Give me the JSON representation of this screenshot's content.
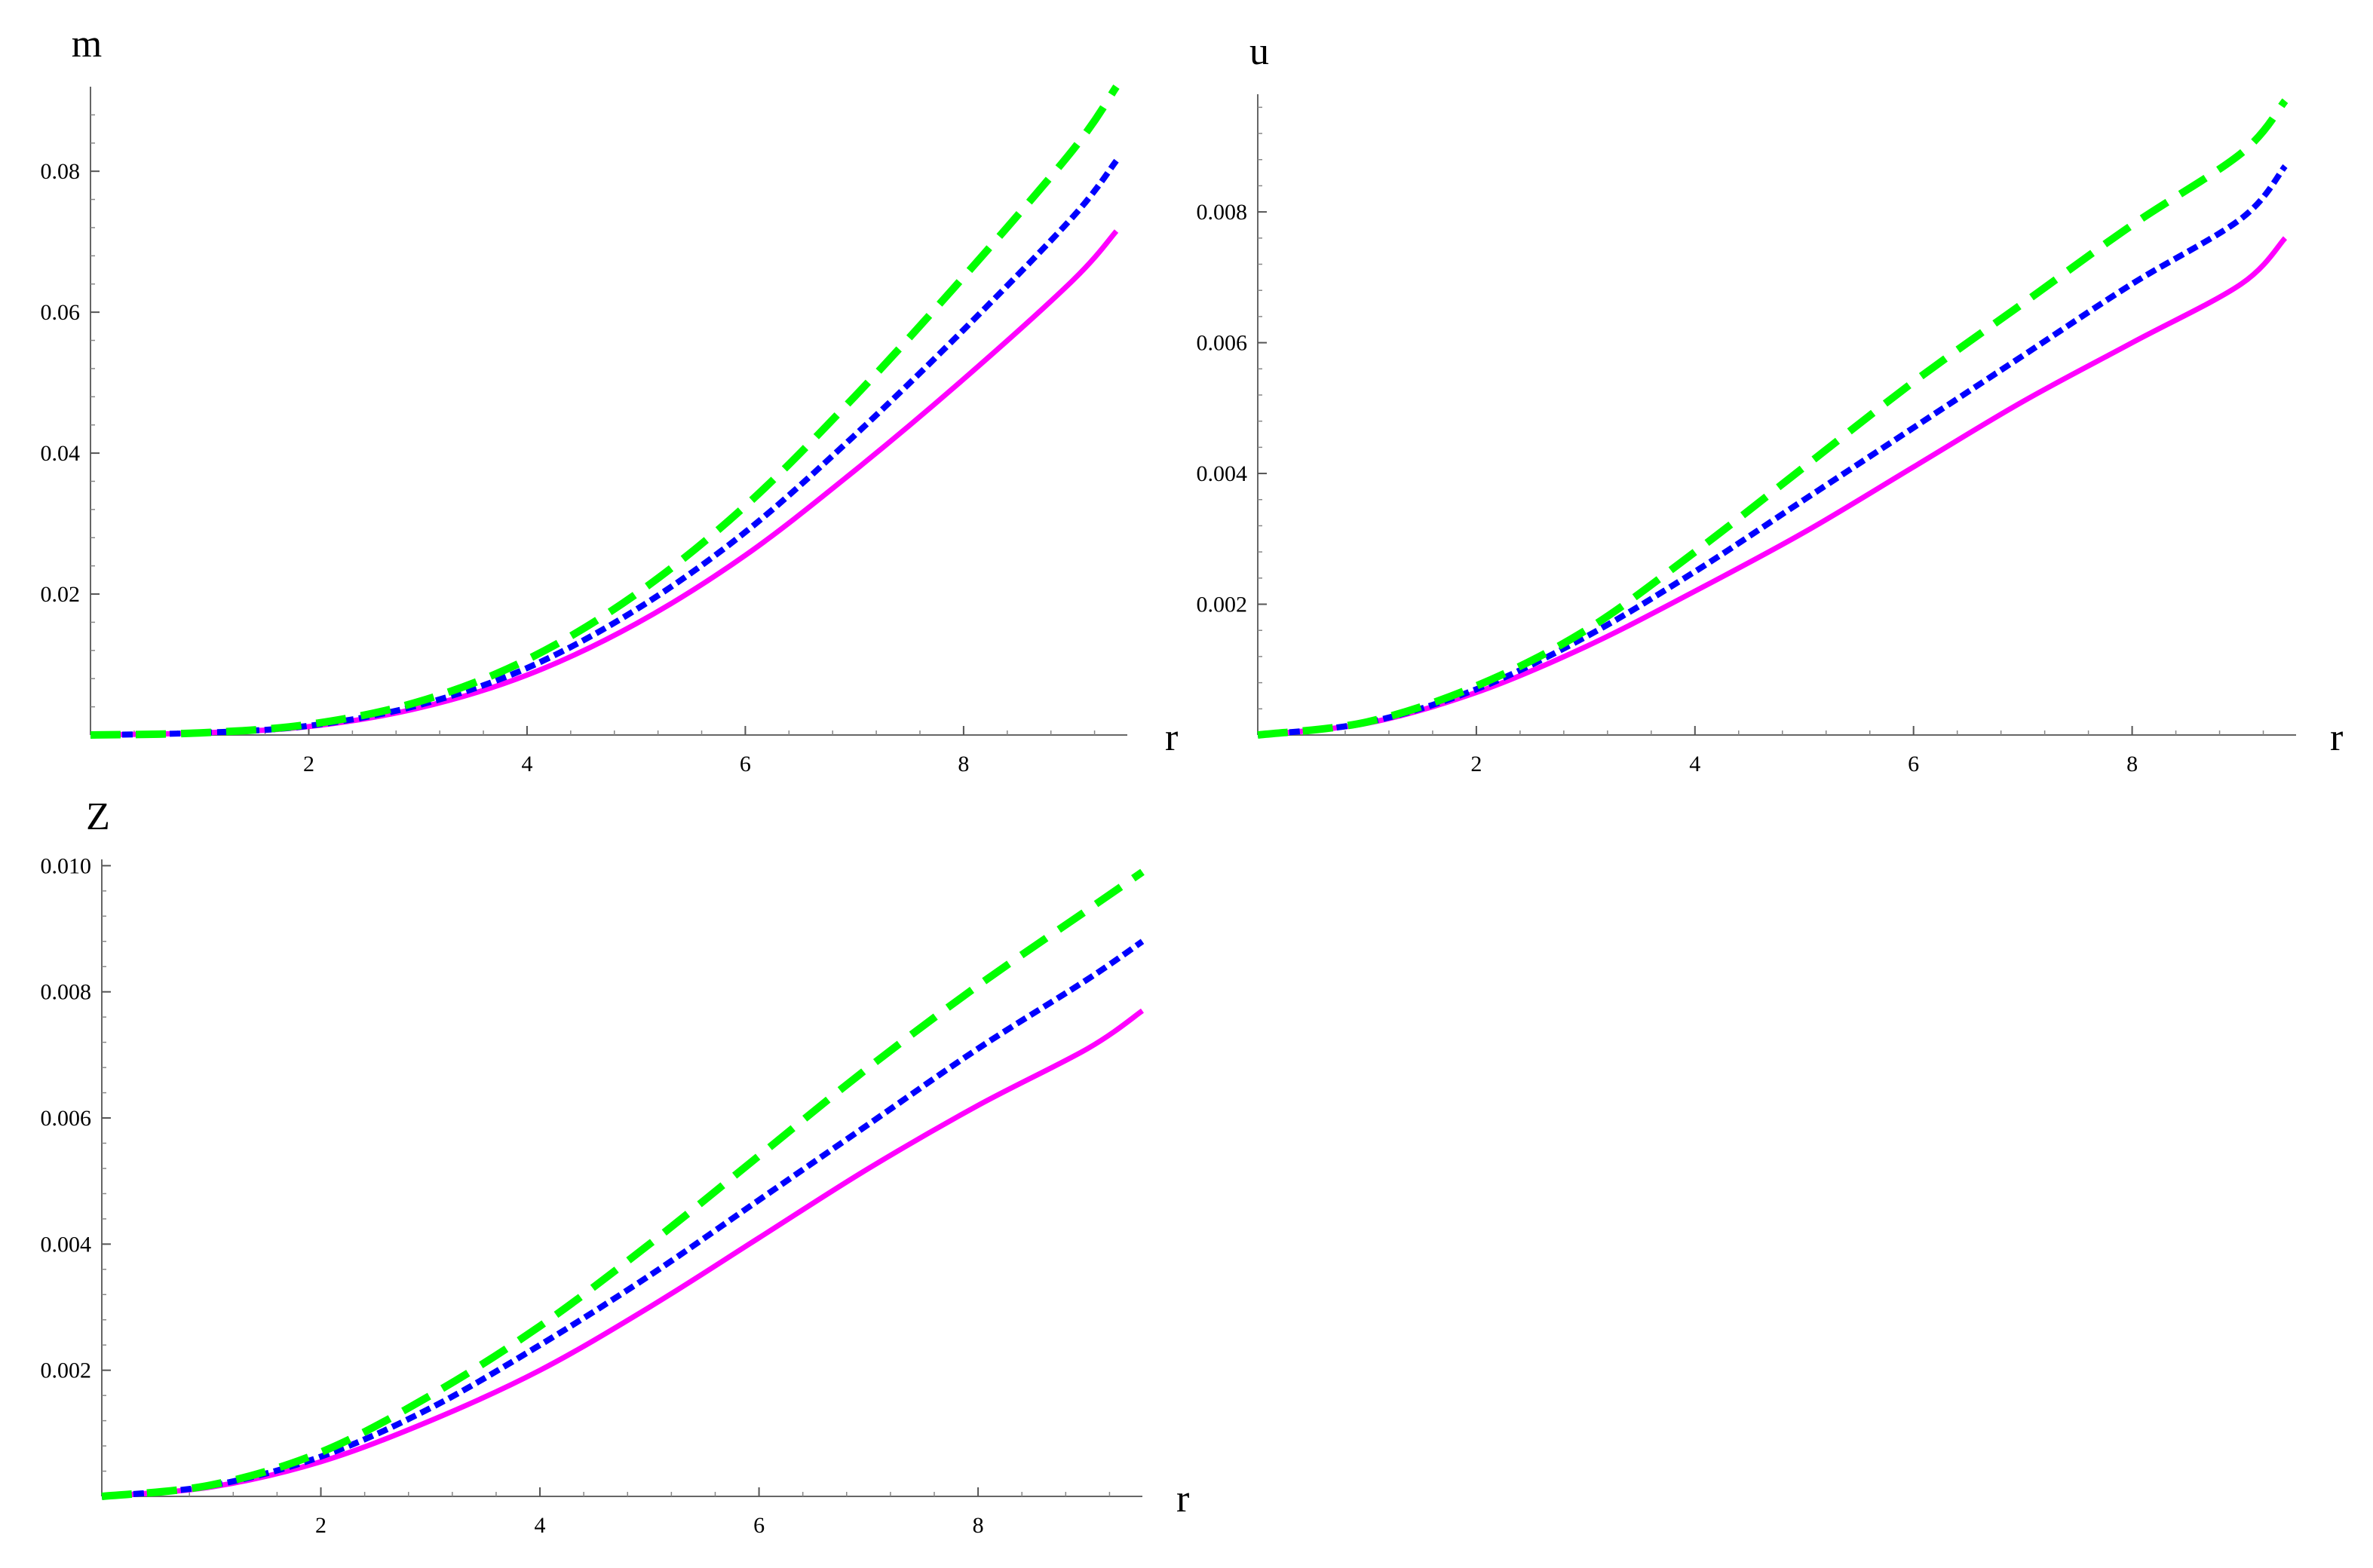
{
  "chart_data": [
    {
      "type": "line",
      "xlabel": "r",
      "ylabel": "m",
      "xlim": [
        0,
        9.5
      ],
      "ylim": [
        0,
        0.092
      ],
      "xticks": [
        2,
        4,
        6,
        8
      ],
      "yticks": [
        0.02,
        0.04,
        0.06,
        0.08
      ],
      "ytick_labels": [
        "0.02",
        "0.04",
        "0.06",
        "0.08"
      ],
      "grid": false,
      "x": [
        0,
        1,
        2,
        3,
        4,
        5,
        6,
        7,
        8,
        9,
        9.4
      ],
      "series": [
        {
          "style": "solid",
          "color": "#ff00ff",
          "values": [
            0,
            0.0003,
            0.0012,
            0.0038,
            0.0085,
            0.0158,
            0.0255,
            0.0375,
            0.0505,
            0.0645,
            0.0715
          ]
        },
        {
          "style": "dotted",
          "color": "#0000ff",
          "values": [
            0,
            0.0003,
            0.0013,
            0.0042,
            0.0095,
            0.0178,
            0.0288,
            0.0425,
            0.0575,
            0.0735,
            0.0815
          ]
        },
        {
          "style": "dashed",
          "color": "#00ff00",
          "values": [
            0,
            0.0003,
            0.0015,
            0.0047,
            0.0107,
            0.02,
            0.0325,
            0.048,
            0.065,
            0.083,
            0.092
          ]
        }
      ]
    },
    {
      "type": "line",
      "xlabel": "r",
      "ylabel": "u",
      "xlim": [
        0,
        9.5
      ],
      "ylim": [
        0,
        0.0098
      ],
      "xticks": [
        2,
        4,
        6,
        8
      ],
      "yticks": [
        0.002,
        0.004,
        0.006,
        0.008
      ],
      "ytick_labels": [
        "0.002",
        "0.004",
        "0.006",
        "0.008"
      ],
      "grid": false,
      "x": [
        0,
        1,
        2,
        3,
        4,
        5,
        6,
        7,
        8,
        9,
        9.4
      ],
      "series": [
        {
          "style": "solid",
          "color": "#ff00ff",
          "values": [
            0,
            0.00018,
            0.00065,
            0.00135,
            0.0022,
            0.0031,
            0.0041,
            0.0051,
            0.006,
            0.0069,
            0.0076
          ]
        },
        {
          "style": "dotted",
          "color": "#0000ff",
          "values": [
            0,
            0.00019,
            0.0007,
            0.0015,
            0.0025,
            0.0036,
            0.0047,
            0.0058,
            0.0069,
            0.0079,
            0.0087
          ]
        },
        {
          "style": "dashed",
          "color": "#00ff00",
          "values": [
            0,
            0.0002,
            0.00075,
            0.0016,
            0.0028,
            0.0041,
            0.0054,
            0.0066,
            0.0078,
            0.0089,
            0.0097
          ]
        }
      ]
    },
    {
      "type": "line",
      "xlabel": "r",
      "ylabel": "Z",
      "xlim": [
        0,
        9.5
      ],
      "ylim": [
        0,
        0.0101
      ],
      "xticks": [
        2,
        4,
        6,
        8
      ],
      "yticks": [
        0.002,
        0.004,
        0.006,
        0.008,
        0.01
      ],
      "ytick_labels": [
        "0.002",
        "0.004",
        "0.006",
        "0.008",
        "0.010"
      ],
      "grid": false,
      "x": [
        0,
        1,
        2,
        3,
        4,
        5,
        6,
        7,
        8,
        9,
        9.5
      ],
      "series": [
        {
          "style": "solid",
          "color": "#ff00ff",
          "values": [
            0,
            0.00015,
            0.00055,
            0.0012,
            0.002,
            0.003,
            0.0041,
            0.0052,
            0.0062,
            0.0071,
            0.0077
          ]
        },
        {
          "style": "dotted",
          "color": "#0000ff",
          "values": [
            0,
            0.00017,
            0.00063,
            0.0014,
            0.0024,
            0.0035,
            0.0047,
            0.0059,
            0.0071,
            0.0082,
            0.0088
          ]
        },
        {
          "style": "dashed",
          "color": "#00ff00",
          "values": [
            0,
            0.00018,
            0.0007,
            0.0016,
            0.0027,
            0.004,
            0.0054,
            0.0068,
            0.0081,
            0.0093,
            0.0099
          ]
        }
      ]
    }
  ]
}
